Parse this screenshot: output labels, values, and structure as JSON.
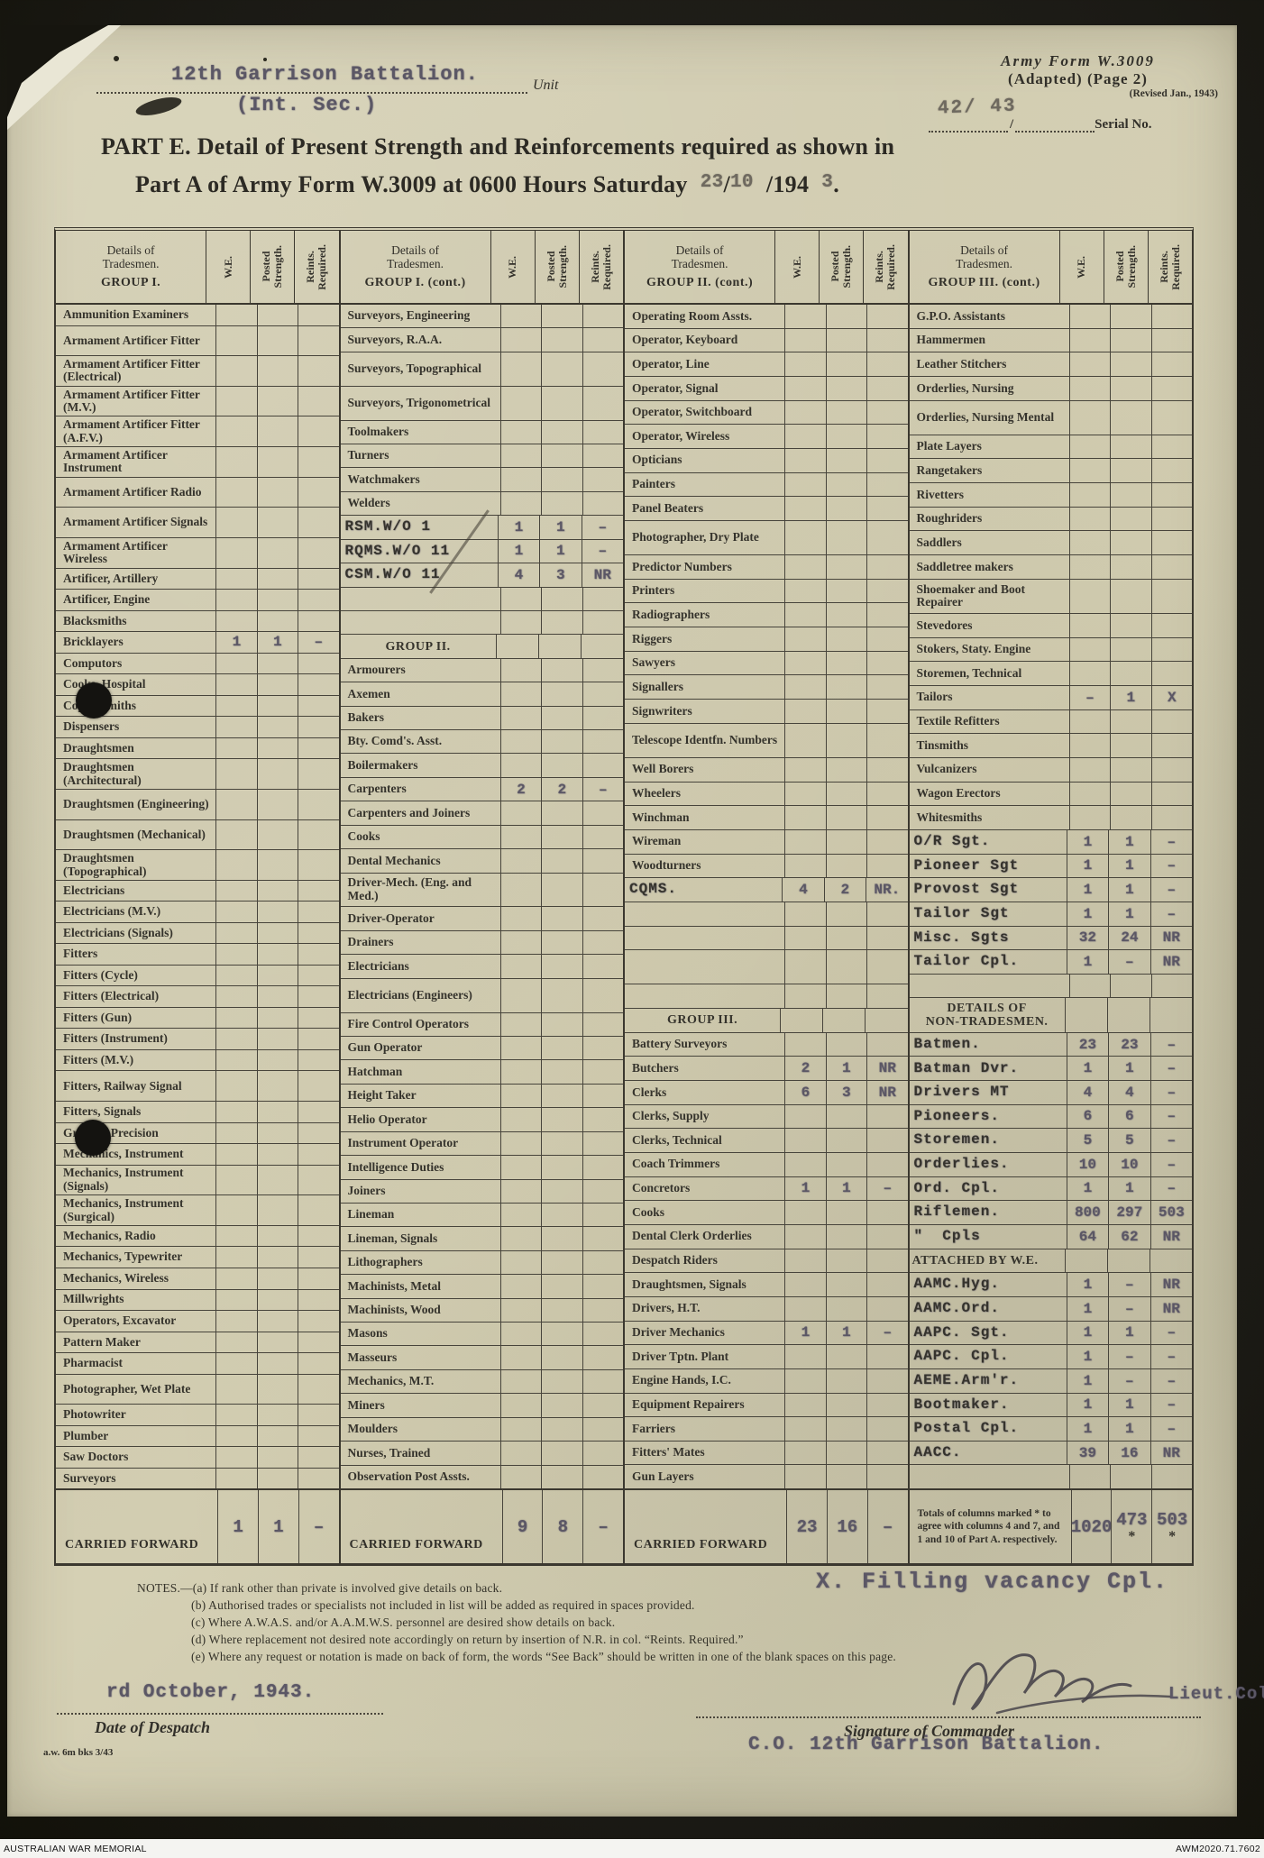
{
  "colors": {
    "paper": "#d2cdb2",
    "ink": "#32302a",
    "typed_ink": "#5b5765",
    "stamp_ink": "#6e695f",
    "background": "#1b1a15",
    "footer_bg": "#f4f4f1"
  },
  "header": {
    "unit_value": "12th Garrison Battalion.",
    "unit_value_2": "(Int. Sec.)",
    "unit_label": "Unit",
    "form_name": "Army Form  W.3009",
    "form_adapted": "(Adapted)  (Page 2)",
    "form_revised": "(Revised Jan., 1943)",
    "serial_stamp": "42/  43",
    "serial_slash": "/",
    "serial_label": "Serial No.",
    "title_line1": "PART E.  Detail of Present Strength and Reinforcements required as shown in",
    "title_line2_pre": "Part A of Army Form W.3009 at 0600 Hours Saturday",
    "date_stamp_day": "23",
    "date_slash": "/",
    "date_stamp_month": "10",
    "title_line2_year": "/194",
    "date_stamp_year": "3",
    "title_period": "."
  },
  "table": {
    "value_headers": [
      "W.E.",
      "Posted\nStrength.",
      "Reints.\nRequired."
    ],
    "groups": [
      {
        "header": [
          "Details of",
          "Tradesmen.",
          "GROUP I."
        ],
        "rows": [
          {
            "l": "Ammunition Examiners"
          },
          {
            "l": "Armament Artificer Fitter",
            "t": 1
          },
          {
            "l": "Armament Artificer Fitter (Electrical)",
            "t": 1
          },
          {
            "l": "Armament Artificer Fitter (M.V.)",
            "t": 1
          },
          {
            "l": "Armament Artificer Fitter (A.F.V.)",
            "t": 1
          },
          {
            "l": "Armament Artificer Instrument",
            "t": 1
          },
          {
            "l": "Armament Artificer Radio",
            "t": 1
          },
          {
            "l": "Armament Artificer Signals",
            "t": 1
          },
          {
            "l": "Armament Artificer Wireless",
            "t": 1
          },
          {
            "l": "Artificer, Artillery"
          },
          {
            "l": "Artificer, Engine"
          },
          {
            "l": "Blacksmiths"
          },
          {
            "l": "Bricklayers",
            "v": [
              "1",
              "1",
              "–"
            ]
          },
          {
            "l": "Computors"
          },
          {
            "l": "Cooks, Hospital"
          },
          {
            "l": "Coppersmiths"
          },
          {
            "l": "Dispensers"
          },
          {
            "l": "Draughtsmen"
          },
          {
            "l": "Draughtsmen (Architectural)",
            "t": 1
          },
          {
            "l": "Draughtsmen (Engineering)",
            "t": 1
          },
          {
            "l": "Draughtsmen (Mechanical)",
            "t": 1
          },
          {
            "l": "Draughtsmen (Topographical)",
            "t": 1
          },
          {
            "l": "Electricians"
          },
          {
            "l": "Electricians (M.V.)"
          },
          {
            "l": "Electricians (Signals)"
          },
          {
            "l": "Fitters"
          },
          {
            "l": "Fitters (Cycle)"
          },
          {
            "l": "Fitters (Electrical)"
          },
          {
            "l": "Fitters (Gun)"
          },
          {
            "l": "Fitters (Instrument)"
          },
          {
            "l": "Fitters (M.V.)"
          },
          {
            "l": "Fitters, Railway Signal",
            "t": 1
          },
          {
            "l": "Fitters, Signals"
          },
          {
            "l": "Grinder, Precision"
          },
          {
            "l": "Mechanics, Instrument"
          },
          {
            "l": "Mechanics, Instrument (Signals)",
            "t": 1
          },
          {
            "l": "Mechanics, Instrument (Surgical)",
            "t": 1
          },
          {
            "l": "Mechanics, Radio"
          },
          {
            "l": "Mechanics, Typewriter"
          },
          {
            "l": "Mechanics, Wireless"
          },
          {
            "l": "Millwrights"
          },
          {
            "l": "Operators, Excavator"
          },
          {
            "l": "Pattern Maker"
          },
          {
            "l": "Pharmacist"
          },
          {
            "l": "Photographer, Wet Plate",
            "t": 1
          },
          {
            "l": "Photowriter"
          },
          {
            "l": "Plumber"
          },
          {
            "l": "Saw Doctors"
          },
          {
            "l": "Surveyors"
          }
        ],
        "cf": {
          "label": "CARRIED FORWARD",
          "v": [
            "1",
            "1",
            "–"
          ]
        }
      },
      {
        "header": [
          "Details of",
          "Tradesmen.",
          "GROUP I. (cont.)"
        ],
        "rows": [
          {
            "l": "Surveyors, Engineering"
          },
          {
            "l": "Surveyors, R.A.A."
          },
          {
            "l": "Surveyors, Topographical",
            "t": 1
          },
          {
            "l": "Surveyors, Trigonometrical",
            "t": 1
          },
          {
            "l": "Toolmakers"
          },
          {
            "l": "Turners"
          },
          {
            "l": "Watchmakers"
          },
          {
            "l": "Welders"
          },
          {
            "l": "RSM.W/O 1",
            "y": 1,
            "v": [
              "1",
              "1",
              "–"
            ]
          },
          {
            "l": "RQMS.W/O 11",
            "y": 1,
            "v": [
              "1",
              "1",
              "–"
            ]
          },
          {
            "l": "CSM.W/O 11",
            "y": 1,
            "v": [
              "4",
              "3",
              "NR"
            ]
          },
          {},
          {},
          {
            "s": "GROUP II."
          },
          {
            "l": "Armourers"
          },
          {
            "l": "Axemen"
          },
          {
            "l": "Bakers"
          },
          {
            "l": "Bty. Comd's. Asst."
          },
          {
            "l": "Boilermakers"
          },
          {
            "l": "Carpenters",
            "v": [
              "2",
              "2",
              "–"
            ]
          },
          {
            "l": "Carpenters and Joiners"
          },
          {
            "l": "Cooks"
          },
          {
            "l": "Dental Mechanics"
          },
          {
            "l": "Driver-Mech. (Eng. and Med.)",
            "t": 1
          },
          {
            "l": "Driver-Operator"
          },
          {
            "l": "Drainers"
          },
          {
            "l": "Electricians"
          },
          {
            "l": "Electricians (Engineers)",
            "t": 1
          },
          {
            "l": "Fire Control Operators"
          },
          {
            "l": "Gun Operator"
          },
          {
            "l": "Hatchman"
          },
          {
            "l": "Height Taker"
          },
          {
            "l": "Helio Operator"
          },
          {
            "l": "Instrument Operator"
          },
          {
            "l": "Intelligence Duties"
          },
          {
            "l": "Joiners"
          },
          {
            "l": "Lineman"
          },
          {
            "l": "Lineman, Signals"
          },
          {
            "l": "Lithographers"
          },
          {
            "l": "Machinists, Metal"
          },
          {
            "l": "Machinists, Wood"
          },
          {
            "l": "Masons"
          },
          {
            "l": "Masseurs"
          },
          {
            "l": "Mechanics, M.T."
          },
          {
            "l": "Miners"
          },
          {
            "l": "Moulders"
          },
          {
            "l": "Nurses, Trained"
          },
          {
            "l": "Observation Post Assts."
          }
        ],
        "cf": {
          "label": "CARRIED FORWARD",
          "v": [
            "9",
            "8",
            "–"
          ]
        }
      },
      {
        "header": [
          "Details of",
          "Tradesmen.",
          "GROUP II. (cont.)"
        ],
        "rows": [
          {
            "l": "Operating Room Assts."
          },
          {
            "l": "Operator, Keyboard"
          },
          {
            "l": "Operator, Line"
          },
          {
            "l": "Operator, Signal"
          },
          {
            "l": "Operator, Switchboard"
          },
          {
            "l": "Operator, Wireless"
          },
          {
            "l": "Opticians"
          },
          {
            "l": "Painters"
          },
          {
            "l": "Panel Beaters"
          },
          {
            "l": "Photographer, Dry Plate",
            "t": 1
          },
          {
            "l": "Predictor Numbers"
          },
          {
            "l": "Printers"
          },
          {
            "l": "Radiographers"
          },
          {
            "l": "Riggers"
          },
          {
            "l": "Sawyers"
          },
          {
            "l": "Signallers"
          },
          {
            "l": "Signwriters"
          },
          {
            "l": "Telescope Identfn. Numbers",
            "t": 1
          },
          {
            "l": "Well Borers"
          },
          {
            "l": "Wheelers"
          },
          {
            "l": "Winchman"
          },
          {
            "l": "Wireman"
          },
          {
            "l": "Woodturners"
          },
          {
            "l": "CQMS.",
            "y": 1,
            "v": [
              "4",
              "2",
              "NR."
            ]
          },
          {},
          {},
          {
            "t": 1
          },
          {},
          {
            "s": "GROUP III."
          },
          {
            "l": "Battery Surveyors"
          },
          {
            "l": "Butchers",
            "v": [
              "2",
              "1",
              "NR"
            ]
          },
          {
            "l": "Clerks",
            "v": [
              "6",
              "3",
              "NR"
            ]
          },
          {
            "l": "Clerks, Supply"
          },
          {
            "l": "Clerks, Technical"
          },
          {
            "l": "Coach Trimmers"
          },
          {
            "l": "Concretors",
            "v": [
              "1",
              "1",
              "–"
            ]
          },
          {
            "l": "Cooks"
          },
          {
            "l": "Dental Clerk Orderlies"
          },
          {
            "l": "Despatch Riders"
          },
          {
            "l": "Draughtsmen, Signals"
          },
          {
            "l": "Drivers, H.T."
          },
          {
            "l": "Driver Mechanics",
            "v": [
              "1",
              "1",
              "–"
            ]
          },
          {
            "l": "Driver Tptn. Plant"
          },
          {
            "l": "Engine Hands, I.C."
          },
          {
            "l": "Equipment Repairers"
          },
          {
            "l": "Farriers"
          },
          {
            "l": "Fitters' Mates"
          },
          {
            "l": "Gun Layers"
          }
        ],
        "cf": {
          "label": "CARRIED FORWARD",
          "v": [
            "23",
            "16",
            "–"
          ]
        }
      },
      {
        "header": [
          "Details of",
          "Tradesmen.",
          "GROUP III. (cont.)"
        ],
        "rows": [
          {
            "l": "G.P.O. Assistants"
          },
          {
            "l": "Hammermen"
          },
          {
            "l": "Leather Stitchers"
          },
          {
            "l": "Orderlies, Nursing"
          },
          {
            "l": "Orderlies, Nursing Mental",
            "t": 1
          },
          {
            "l": "Plate Layers"
          },
          {
            "l": "Rangetakers"
          },
          {
            "l": "Rivetters"
          },
          {
            "l": "Roughriders"
          },
          {
            "l": "Saddlers"
          },
          {
            "l": "Saddletree makers"
          },
          {
            "l": "Shoemaker and Boot Repairer",
            "t": 1
          },
          {
            "l": "Stevedores"
          },
          {
            "l": "Stokers, Staty. Engine"
          },
          {
            "l": "Storemen, Technical"
          },
          {
            "l": "Tailors",
            "v": [
              "–",
              "1",
              "X"
            ]
          },
          {
            "l": "Textile Refitters"
          },
          {
            "l": "Tinsmiths"
          },
          {
            "l": "Vulcanizers"
          },
          {
            "l": "Wagon Erectors"
          },
          {
            "l": "Whitesmiths"
          },
          {
            "l": "O/R Sgt.",
            "y": 1,
            "v": [
              "1",
              "1",
              "–"
            ]
          },
          {
            "l": "Pioneer Sgt",
            "y": 1,
            "v": [
              "1",
              "1",
              "–"
            ]
          },
          {
            "l": "Provost Sgt",
            "y": 1,
            "v": [
              "1",
              "1",
              "–"
            ]
          },
          {
            "l": "Tailor Sgt",
            "y": 1,
            "v": [
              "1",
              "1",
              "–"
            ]
          },
          {
            "l": "Misc. Sgts",
            "y": 1,
            "v": [
              "32",
              "24",
              "NR"
            ]
          },
          {
            "l": "Tailor Cpl.",
            "y": 1,
            "v": [
              "1",
              "–",
              "NR"
            ]
          },
          {},
          {
            "s": "DETAILS OF\nNON-TRADESMEN.",
            "t": 1
          },
          {
            "l": "Batmen.",
            "y": 1,
            "v": [
              "23",
              "23",
              "–"
            ]
          },
          {
            "l": "Batman Dvr.",
            "y": 1,
            "v": [
              "1",
              "1",
              "–"
            ]
          },
          {
            "l": "Drivers MT",
            "y": 1,
            "v": [
              "4",
              "4",
              "–"
            ]
          },
          {
            "l": "Pioneers.",
            "y": 1,
            "v": [
              "6",
              "6",
              "–"
            ]
          },
          {
            "l": "Storemen.",
            "y": 1,
            "v": [
              "5",
              "5",
              "–"
            ]
          },
          {
            "l": "Orderlies.",
            "y": 1,
            "v": [
              "10",
              "10",
              "–"
            ]
          },
          {
            "l": "Ord. Cpl.",
            "y": 1,
            "v": [
              "1",
              "1",
              "–"
            ]
          },
          {
            "l": "Riflemen.",
            "y": 1,
            "v": [
              "800",
              "297",
              "503"
            ]
          },
          {
            "l": "\"  Cpls",
            "y": 1,
            "v": [
              "64",
              "62",
              "NR"
            ]
          },
          {
            "s": "ATTACHED BY W.E.",
            "left": 1
          },
          {
            "l": "AAMC.Hyg.",
            "y": 1,
            "v": [
              "1",
              "–",
              "NR"
            ]
          },
          {
            "l": "AAMC.Ord.",
            "y": 1,
            "v": [
              "1",
              "–",
              "NR"
            ]
          },
          {
            "l": "AAPC. Sgt.",
            "y": 1,
            "v": [
              "1",
              "1",
              "–"
            ]
          },
          {
            "l": "AAPC. Cpl.",
            "y": 1,
            "v": [
              "1",
              "–",
              "–"
            ]
          },
          {
            "l": "AEME.Arm'r.",
            "y": 1,
            "v": [
              "1",
              "–",
              "–"
            ]
          },
          {
            "l": "Bootmaker.",
            "y": 1,
            "v": [
              "1",
              "1",
              "–"
            ]
          },
          {
            "l": "Postal Cpl.",
            "y": 1,
            "v": [
              "1",
              "1",
              "–"
            ]
          },
          {
            "l": "AACC.",
            "y": 1,
            "v": [
              "39",
              "16",
              "NR"
            ]
          },
          {}
        ],
        "cf": {
          "note": "Totals of columns marked * to agree with columns 4 and 7, and 1 and 10 of Part A. respectively.",
          "v": [
            "1020",
            "473",
            "503"
          ],
          "ast": [
            false,
            true,
            true
          ]
        }
      }
    ]
  },
  "annotation": "X. Filling vacancy Cpl.",
  "notes": {
    "lines": [
      "NOTES.—(a) If rank other than private is involved give details on back.",
      "(b) Authorised trades or specialists not included in list will be added as required in spaces provided.",
      "(c) Where A.W.A.S. and/or A.A.M.W.S. personnel are desired show details on back.",
      "(d) Where replacement not desired note accordingly on return by insertion of N.R. in col. “Reints. Required.”",
      "(e) Where any request or notation is made on back of form, the words “See Back” should be written in one of the blank spaces on this page."
    ]
  },
  "despatch": {
    "value": "rd October, 1943.",
    "label": "Date of Despatch",
    "print_code": "a.w. 6m bks 3/43"
  },
  "signature": {
    "rank": "Lieut.Col.",
    "label": "Signature of Commander",
    "co_line": "C.O. 12th Garrison Battalion."
  },
  "footer": {
    "left": "AUSTRALIAN WAR MEMORIAL",
    "right": "AWM2020.71.7602"
  }
}
